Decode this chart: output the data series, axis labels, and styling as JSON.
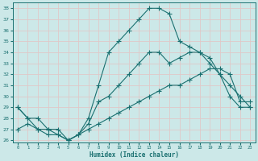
{
  "xlabel": "Humidex (Indice chaleur)",
  "xlim": [
    -0.5,
    23.5
  ],
  "ylim": [
    25.8,
    38.5
  ],
  "yticks": [
    26,
    27,
    28,
    29,
    30,
    31,
    32,
    33,
    34,
    35,
    36,
    37,
    38
  ],
  "xticks": [
    0,
    1,
    2,
    3,
    4,
    5,
    6,
    7,
    8,
    9,
    10,
    11,
    12,
    13,
    14,
    15,
    16,
    17,
    18,
    19,
    20,
    21,
    22,
    23
  ],
  "bg_color": "#cce8e8",
  "line_color": "#1a7070",
  "grid_color": "#e0c8c8",
  "line1_x": [
    0,
    1,
    2,
    3,
    4,
    5,
    6,
    7,
    8,
    9,
    10,
    11,
    12,
    13,
    14,
    15,
    16,
    17,
    18,
    19,
    20,
    21,
    22,
    23
  ],
  "line1_y": [
    29,
    28,
    28,
    27,
    27,
    26,
    26.5,
    28,
    31,
    34,
    35,
    36,
    37,
    38,
    38,
    37.5,
    35,
    34.5,
    34,
    33,
    32,
    31,
    30,
    29
  ],
  "line2_x": [
    0,
    1,
    2,
    3,
    4,
    5,
    6,
    7,
    8,
    9,
    10,
    11,
    12,
    13,
    14,
    15,
    16,
    17,
    18,
    19,
    20,
    21,
    22,
    23
  ],
  "line2_y": [
    29,
    28,
    27,
    27,
    26.5,
    26,
    26.5,
    27.5,
    29.5,
    30,
    31,
    32,
    33,
    34,
    34,
    33,
    33.5,
    34,
    34,
    33.5,
    32,
    30,
    29,
    29
  ],
  "line3_x": [
    0,
    1,
    2,
    3,
    4,
    5,
    6,
    7,
    8,
    9,
    10,
    11,
    12,
    13,
    14,
    15,
    16,
    17,
    18,
    19,
    20,
    21,
    22,
    23
  ],
  "line3_y": [
    27,
    27.5,
    27,
    26.5,
    26.5,
    26,
    26.5,
    27,
    27.5,
    28,
    28.5,
    29,
    29.5,
    30,
    30.5,
    31,
    31,
    31.5,
    32,
    32.5,
    32.5,
    32,
    29.5,
    29.5
  ]
}
